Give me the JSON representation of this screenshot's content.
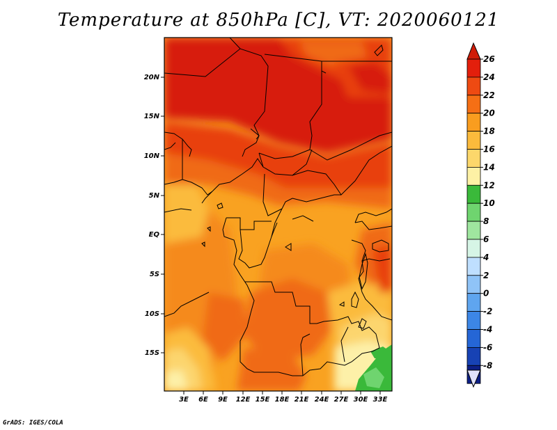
{
  "title": "Temperature at 850hPa [C], VT: 2020060121",
  "credit": "GrADS: IGES/COLA",
  "map": {
    "lat_ticks": [
      "20N",
      "15N",
      "10N",
      "5N",
      "EQ",
      "5S",
      "10S",
      "15S"
    ],
    "lon_ticks": [
      "3E",
      "6E",
      "9E",
      "12E",
      "15E",
      "18E",
      "21E",
      "24E",
      "27E",
      "30E",
      "33E"
    ]
  },
  "colorbar": {
    "labels": [
      "26",
      "24",
      "22",
      "20",
      "18",
      "16",
      "14",
      "12",
      "10",
      "8",
      "6",
      "4",
      "2",
      "0",
      "-2",
      "-4",
      "-6",
      "-8"
    ],
    "colors": [
      "#e31f0c",
      "#ee4a12",
      "#f56f15",
      "#f99d1f",
      "#fbba3c",
      "#fcd76b",
      "#fdf1a5",
      "#3ab93a",
      "#6fd46f",
      "#9fe69f",
      "#d6f5e6",
      "#bfdfff",
      "#8fc3f7",
      "#5fa5ef",
      "#3c86e6",
      "#2566d6",
      "#1742b4",
      "#0d1f86",
      "#e1e2fb"
    ],
    "top_arrow_color": "#d01c08",
    "bottom_arrow_color": "#e1e2fb"
  },
  "field_colors": {
    "c26": "#d71d08",
    "c24": "#e8410f",
    "c22": "#f06a14",
    "c21": "#f58a1a",
    "c20": "#f9a221",
    "c18": "#fbbb3e",
    "c16": "#fcd56e",
    "c14": "#fdf0a8",
    "c12": "#3ab93a",
    "c10": "#6fd46f"
  }
}
